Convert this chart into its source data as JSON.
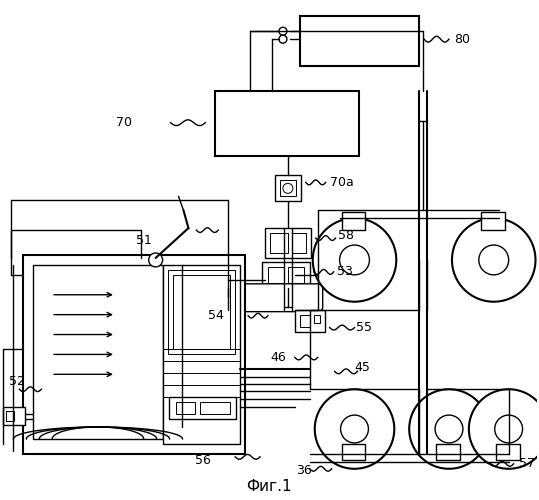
{
  "title": "Фиг.1",
  "bg_color": "#ffffff",
  "line_color": "#000000",
  "lw": 1.0,
  "lw2": 1.5,
  "lw3": 0.7
}
